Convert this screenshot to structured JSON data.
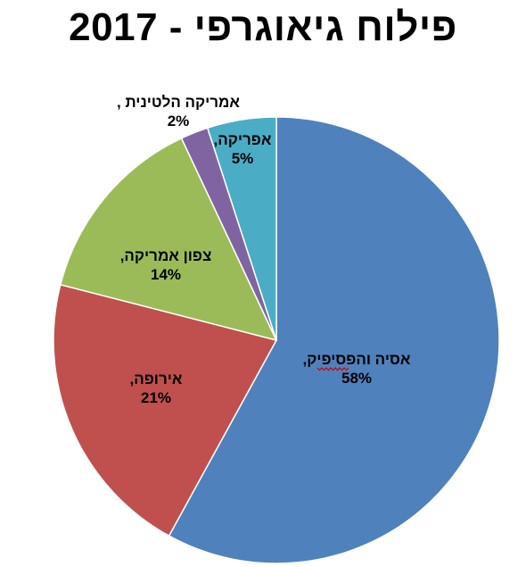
{
  "chart_data": {
    "type": "pie",
    "title": "פילוח גיאוגרפי - 2017",
    "slices": [
      {
        "name": "אסיה והפסיפיק",
        "label": "אסיה והפסיפיק,",
        "value_label": "58%",
        "value": 58,
        "color": "#4F81BD"
      },
      {
        "name": "אירופה",
        "label": "אירופה,",
        "value_label": "21%",
        "value": 21,
        "color": "#C0504D"
      },
      {
        "name": "צפון אמריקה",
        "label": "צפון אמריקה,",
        "value_label": "14%",
        "value": 14,
        "color": "#9BBB59"
      },
      {
        "name": "אמריקה הלטינית",
        "label": "אמריקה הלטינית ,",
        "value_label": "2%",
        "value": 2,
        "color": "#8064A2"
      },
      {
        "name": "אפריקה",
        "label": "אפריקה,",
        "value_label": "5%",
        "value": 5,
        "color": "#4BACC6"
      }
    ],
    "start": "12 o'clock",
    "direction": "clockwise",
    "legend": "none"
  }
}
